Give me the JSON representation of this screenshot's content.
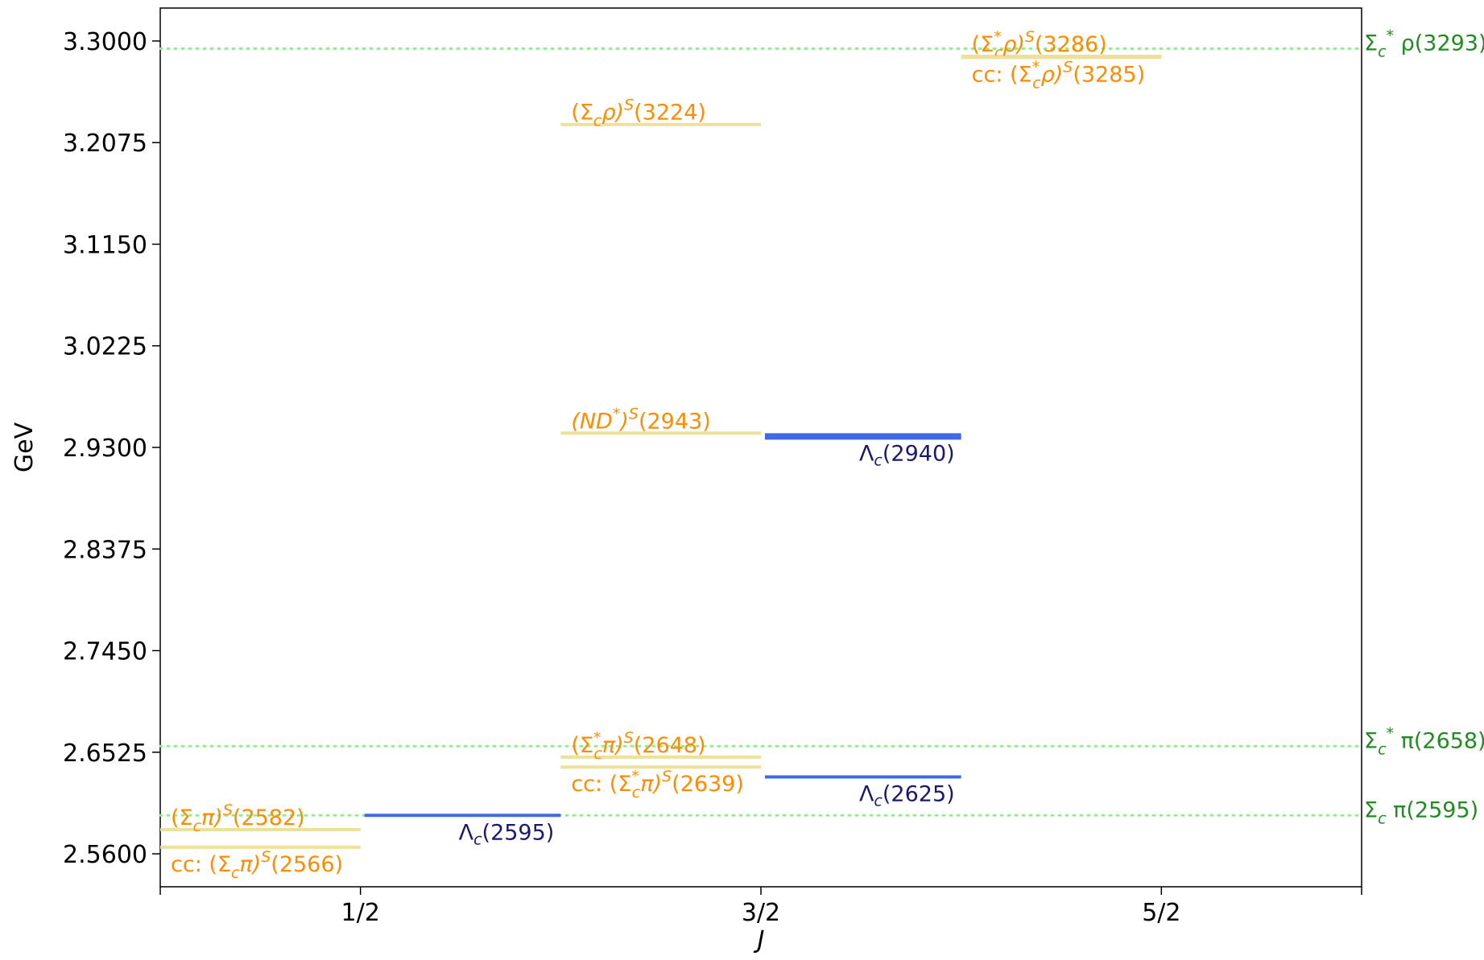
{
  "chart_data": {
    "type": "level-diagram",
    "xlabel": "J",
    "ylabel": "GeV",
    "xticks": [
      {
        "value": 0.5,
        "label": "1/2"
      },
      {
        "value": 1.5,
        "label": "3/2"
      },
      {
        "value": 2.5,
        "label": "5/2"
      }
    ],
    "xlim": [
      0,
      3.0
    ],
    "yticks": [
      2.56,
      2.6525,
      2.745,
      2.8375,
      2.93,
      3.0225,
      3.115,
      3.2075,
      3.3
    ],
    "ytick_labels": [
      "2.5600",
      "2.6525",
      "2.7450",
      "2.8375",
      "2.9300",
      "3.0225",
      "3.1150",
      "3.2075",
      "3.3000"
    ],
    "ylim": [
      2.53,
      3.33
    ],
    "colors": {
      "molecular": "#ece09a",
      "molecular_text": "#ff8c00",
      "experimental": "#4169e1",
      "experimental_text": "#191970",
      "threshold": "#90ee90",
      "threshold_text": "#228b22"
    },
    "thresholds": [
      {
        "label": "Σ_c^* ρ(3293)",
        "main": "Σ",
        "sub": "c",
        "sup": "*",
        "tail": " ρ(3293)",
        "value": 3.293
      },
      {
        "label": "Σ_c^* π(2658)",
        "main": "Σ",
        "sub": "c",
        "sup": "*",
        "tail": " π(2658)",
        "value": 2.658
      },
      {
        "label": "Σ_c π(2595)",
        "main": "Σ",
        "sub": "c",
        "sup": "",
        "tail": " π(2595)",
        "value": 2.595
      }
    ],
    "experimental_levels": [
      {
        "label": "Λc(2595)",
        "main": "Λ",
        "sub": "c",
        "tail": "(2595)",
        "J": 1,
        "x_from": 0.5,
        "x_to": 1.0,
        "value": 2.595,
        "weight": "thin"
      },
      {
        "label": "Λc(2625)",
        "main": "Λ",
        "sub": "c",
        "tail": "(2625)",
        "J": 2,
        "x_from": 1.5,
        "x_to": 2.0,
        "value": 2.63,
        "weight": "thin"
      },
      {
        "label": "Λc(2940)",
        "main": "Λ",
        "sub": "c",
        "tail": "(2940)",
        "J": 2,
        "x_from": 1.5,
        "x_to": 2.0,
        "value": 2.94,
        "weight": "thick"
      }
    ],
    "molecular_levels": [
      {
        "label": "(Σcπ)S(2582)",
        "pre": "(Σ",
        "sub": "c",
        "sup1": "",
        "mid": "π)",
        "sup2": "S",
        "post": "(2582)",
        "italic": false,
        "x_from": 0.0,
        "x_to": 0.5,
        "value": 2.582,
        "text_pos": "above"
      },
      {
        "label": "cc: (Σcπ)S(2566)",
        "pre": "cc: (Σ",
        "sub": "c",
        "sup1": "",
        "mid": "π)",
        "sup2": "S",
        "post": "(2566)",
        "italic": false,
        "x_from": 0.0,
        "x_to": 0.5,
        "value": 2.566,
        "text_pos": "below"
      },
      {
        "label": "(Σc*π)S(2648)",
        "pre": "(Σ",
        "sub": "c",
        "sup1": "*",
        "mid": "π)",
        "sup2": "S",
        "post": "(2648)",
        "italic": false,
        "x_from": 1.0,
        "x_to": 1.5,
        "value": 2.648,
        "text_pos": "above"
      },
      {
        "label": "cc: (Σc*π)S(2639)",
        "pre": "cc: (Σ",
        "sub": "c",
        "sup1": "*",
        "mid": "π)",
        "sup2": "S",
        "post": "(2639)",
        "italic": false,
        "x_from": 1.0,
        "x_to": 1.5,
        "value": 2.639,
        "text_pos": "below"
      },
      {
        "label": "(ND*)S(2943)",
        "pre": "(ND",
        "sub": "",
        "sup1": "*",
        "mid": ")",
        "sup2": "S",
        "post": "(2943)",
        "italic": true,
        "x_from": 1.0,
        "x_to": 1.5,
        "value": 2.943,
        "text_pos": "above"
      },
      {
        "label": "(Σcρ)S(3224)",
        "pre": "(Σ",
        "sub": "c",
        "sup1": "",
        "mid": "ρ)",
        "sup2": "S",
        "post": "(3224)",
        "italic": false,
        "x_from": 1.0,
        "x_to": 1.5,
        "value": 3.224,
        "text_pos": "above"
      },
      {
        "label": "(Σc*ρ)S(3286)",
        "pre": "(Σ",
        "sub": "c",
        "sup1": "*",
        "mid": "ρ)",
        "sup2": "S",
        "post": "(3286)",
        "italic": false,
        "x_from": 2.0,
        "x_to": 2.5,
        "value": 3.286,
        "text_pos": "above"
      },
      {
        "label": "cc: (Σc*ρ)S(3285)",
        "pre": "cc: (Σ",
        "sub": "c",
        "sup1": "*",
        "mid": "ρ)",
        "sup2": "S",
        "post": "(3285)",
        "italic": false,
        "x_from": 2.0,
        "x_to": 2.5,
        "value": 3.285,
        "text_pos": "below"
      }
    ]
  }
}
